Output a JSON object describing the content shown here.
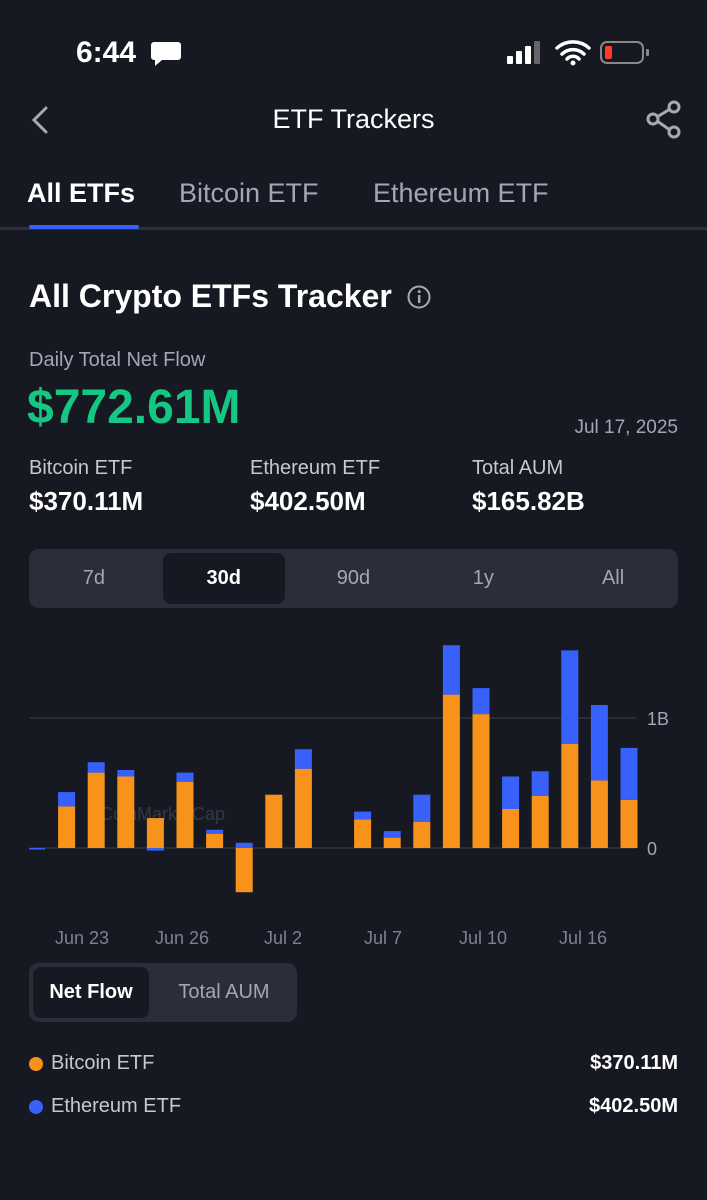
{
  "status": {
    "time": "6:44"
  },
  "header": {
    "title": "ETF Trackers"
  },
  "tabs": [
    "All ETFs",
    "Bitcoin ETF",
    "Ethereum ETF"
  ],
  "section": {
    "title": "All Crypto ETFs Tracker"
  },
  "summary": {
    "label": "Daily Total Net Flow",
    "value": "$772.61M",
    "date": "Jul 17, 2025"
  },
  "stats": [
    {
      "label": "Bitcoin ETF",
      "value": "$370.11M"
    },
    {
      "label": "Ethereum ETF",
      "value": "$402.50M"
    },
    {
      "label": "Total AUM",
      "value": "$165.82B"
    }
  ],
  "ranges": [
    "7d",
    "30d",
    "90d",
    "1y",
    "All"
  ],
  "toggle": [
    "Net Flow",
    "Total AUM"
  ],
  "chart_data": {
    "type": "bar",
    "stacked": true,
    "watermark": "CoinMarketCap",
    "x_labels": [
      "Jun 23",
      "Jun 26",
      "Jul 2",
      "Jul 7",
      "Jul 10",
      "Jul 16"
    ],
    "series": [
      {
        "name": "Bitcoin ETF",
        "color": "#f7931a",
        "values": [
          0,
          0.32,
          0.58,
          0.55,
          0.23,
          0.51,
          0.11,
          -0.34,
          0.41,
          0.61,
          null,
          0.22,
          0.08,
          0.2,
          1.18,
          1.03,
          0.3,
          0.4,
          0.8,
          0.52,
          0.37
        ]
      },
      {
        "name": "Ethereum ETF",
        "color": "#3861fb",
        "values": [
          -0.01,
          0.11,
          0.08,
          0.05,
          -0.02,
          0.07,
          0.03,
          0.04,
          0,
          0.15,
          null,
          0.06,
          0.05,
          0.21,
          0.38,
          0.2,
          0.25,
          0.19,
          0.72,
          0.58,
          0.4
        ]
      }
    ],
    "ylim": [
      -0.4,
      1.6
    ],
    "yticks": [
      0,
      {
        "value": 1,
        "label": "1B"
      }
    ],
    "grid": true,
    "legend_values": [
      "$370.11M",
      "$402.50M"
    ]
  }
}
